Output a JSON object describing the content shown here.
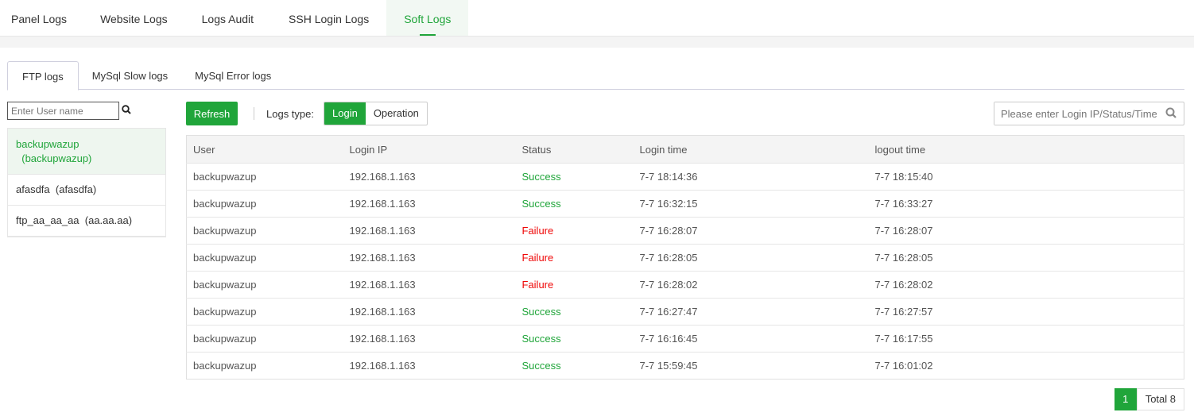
{
  "top_tabs": [
    "Panel Logs",
    "Website Logs",
    "Logs Audit",
    "SSH Login Logs",
    "Soft Logs"
  ],
  "sub_tabs": [
    "FTP logs",
    "MySql Slow logs",
    "MySql Error logs"
  ],
  "user_search_placeholder": "Enter User name",
  "users": [
    {
      "name": "backupwazup",
      "alias": "(backupwazup)"
    },
    {
      "name": "afasdfa",
      "alias": "(afasdfa)"
    },
    {
      "name": "ftp_aa_aa_aa",
      "alias": "(aa.aa.aa)"
    }
  ],
  "toolbar": {
    "refresh": "Refresh",
    "logs_type_label": "Logs type:",
    "types": [
      "Login",
      "Operation"
    ],
    "search_placeholder": "Please enter Login IP/Status/Time"
  },
  "columns": [
    "User",
    "Login IP",
    "Status",
    "Login time",
    "logout time"
  ],
  "rows": [
    [
      "backupwazup",
      "192.168.1.163",
      "Success",
      "7-7 18:14:36",
      "7-7 18:15:40"
    ],
    [
      "backupwazup",
      "192.168.1.163",
      "Success",
      "7-7 16:32:15",
      "7-7 16:33:27"
    ],
    [
      "backupwazup",
      "192.168.1.163",
      "Failure",
      "7-7 16:28:07",
      "7-7 16:28:07"
    ],
    [
      "backupwazup",
      "192.168.1.163",
      "Failure",
      "7-7 16:28:05",
      "7-7 16:28:05"
    ],
    [
      "backupwazup",
      "192.168.1.163",
      "Failure",
      "7-7 16:28:02",
      "7-7 16:28:02"
    ],
    [
      "backupwazup",
      "192.168.1.163",
      "Success",
      "7-7 16:27:47",
      "7-7 16:27:57"
    ],
    [
      "backupwazup",
      "192.168.1.163",
      "Success",
      "7-7 16:16:45",
      "7-7 16:17:55"
    ],
    [
      "backupwazup",
      "192.168.1.163",
      "Success",
      "7-7 15:59:45",
      "7-7 16:01:02"
    ]
  ],
  "pagination": {
    "current": "1",
    "total": "Total 8"
  },
  "colors": {
    "accent": "#20a53a",
    "failure": "#ef0808"
  }
}
